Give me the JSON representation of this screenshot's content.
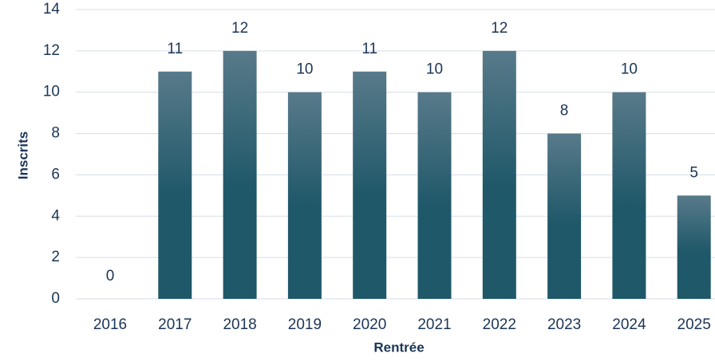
{
  "chart_data": {
    "type": "bar",
    "x_label": "Rentrée",
    "y_label": "Inscrits",
    "categories": [
      "2016",
      "2017",
      "2018",
      "2019",
      "2020",
      "2021",
      "2022",
      "2023",
      "2024",
      "2025"
    ],
    "values": [
      0,
      11,
      12,
      10,
      11,
      10,
      12,
      8,
      10,
      5
    ],
    "gradient": [
      "#587a8a",
      "#1f5869"
    ],
    "ylim": [
      0,
      14
    ],
    "yticks": [
      0,
      2,
      4,
      6,
      8,
      10,
      12,
      14
    ],
    "grid": true
  }
}
